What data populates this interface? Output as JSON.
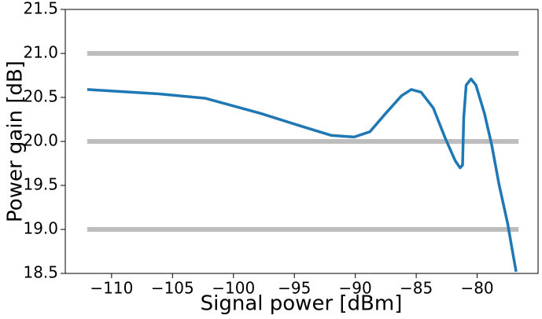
{
  "chart_data": {
    "type": "line",
    "xlabel": "Signal power [dBm]",
    "ylabel": "Power gain [dB]",
    "xlim": [
      -113.8,
      -75.0
    ],
    "ylim": [
      18.5,
      21.5
    ],
    "xticks": [
      {
        "value": -110,
        "label": "−110"
      },
      {
        "value": -105,
        "label": "−105"
      },
      {
        "value": -100,
        "label": "−100"
      },
      {
        "value": -95,
        "label": "−95"
      },
      {
        "value": -90,
        "label": "−90"
      },
      {
        "value": -85,
        "label": "−85"
      },
      {
        "value": -80,
        "label": "−80"
      }
    ],
    "yticks": [
      18.5,
      {
        "value": 19,
        "label": "19.0"
      },
      19.5,
      {
        "value": 20,
        "label": "20.0"
      },
      20.5,
      {
        "value": 21,
        "label": "21.0"
      },
      21.5
    ],
    "hlines": {
      "values": [
        21,
        20,
        19
      ],
      "color": "#bdbdbd",
      "xrange": [
        -112.0,
        -76.6
      ]
    },
    "series": [
      {
        "color": "#1f77b4",
        "x": [
          -112.0,
          -106.1,
          -102.3,
          -97.8,
          -94.6,
          -92.0,
          -90.1,
          -88.8,
          -87.5,
          -86.2,
          -85.4,
          -84.6,
          -83.6,
          -82.6,
          -81.8,
          -81.4,
          -81.2,
          -81.1,
          -80.9,
          -80.5,
          -80.1,
          -79.4,
          -78.8,
          -78.2,
          -77.5,
          -77.1,
          -76.8
        ],
        "values": [
          20.59,
          20.54,
          20.49,
          20.32,
          20.18,
          20.07,
          20.05,
          20.11,
          20.32,
          20.52,
          20.59,
          20.56,
          20.38,
          20.03,
          19.78,
          19.7,
          19.73,
          20.27,
          20.64,
          20.71,
          20.64,
          20.32,
          19.96,
          19.51,
          19.07,
          18.75,
          18.52
        ]
      }
    ]
  }
}
